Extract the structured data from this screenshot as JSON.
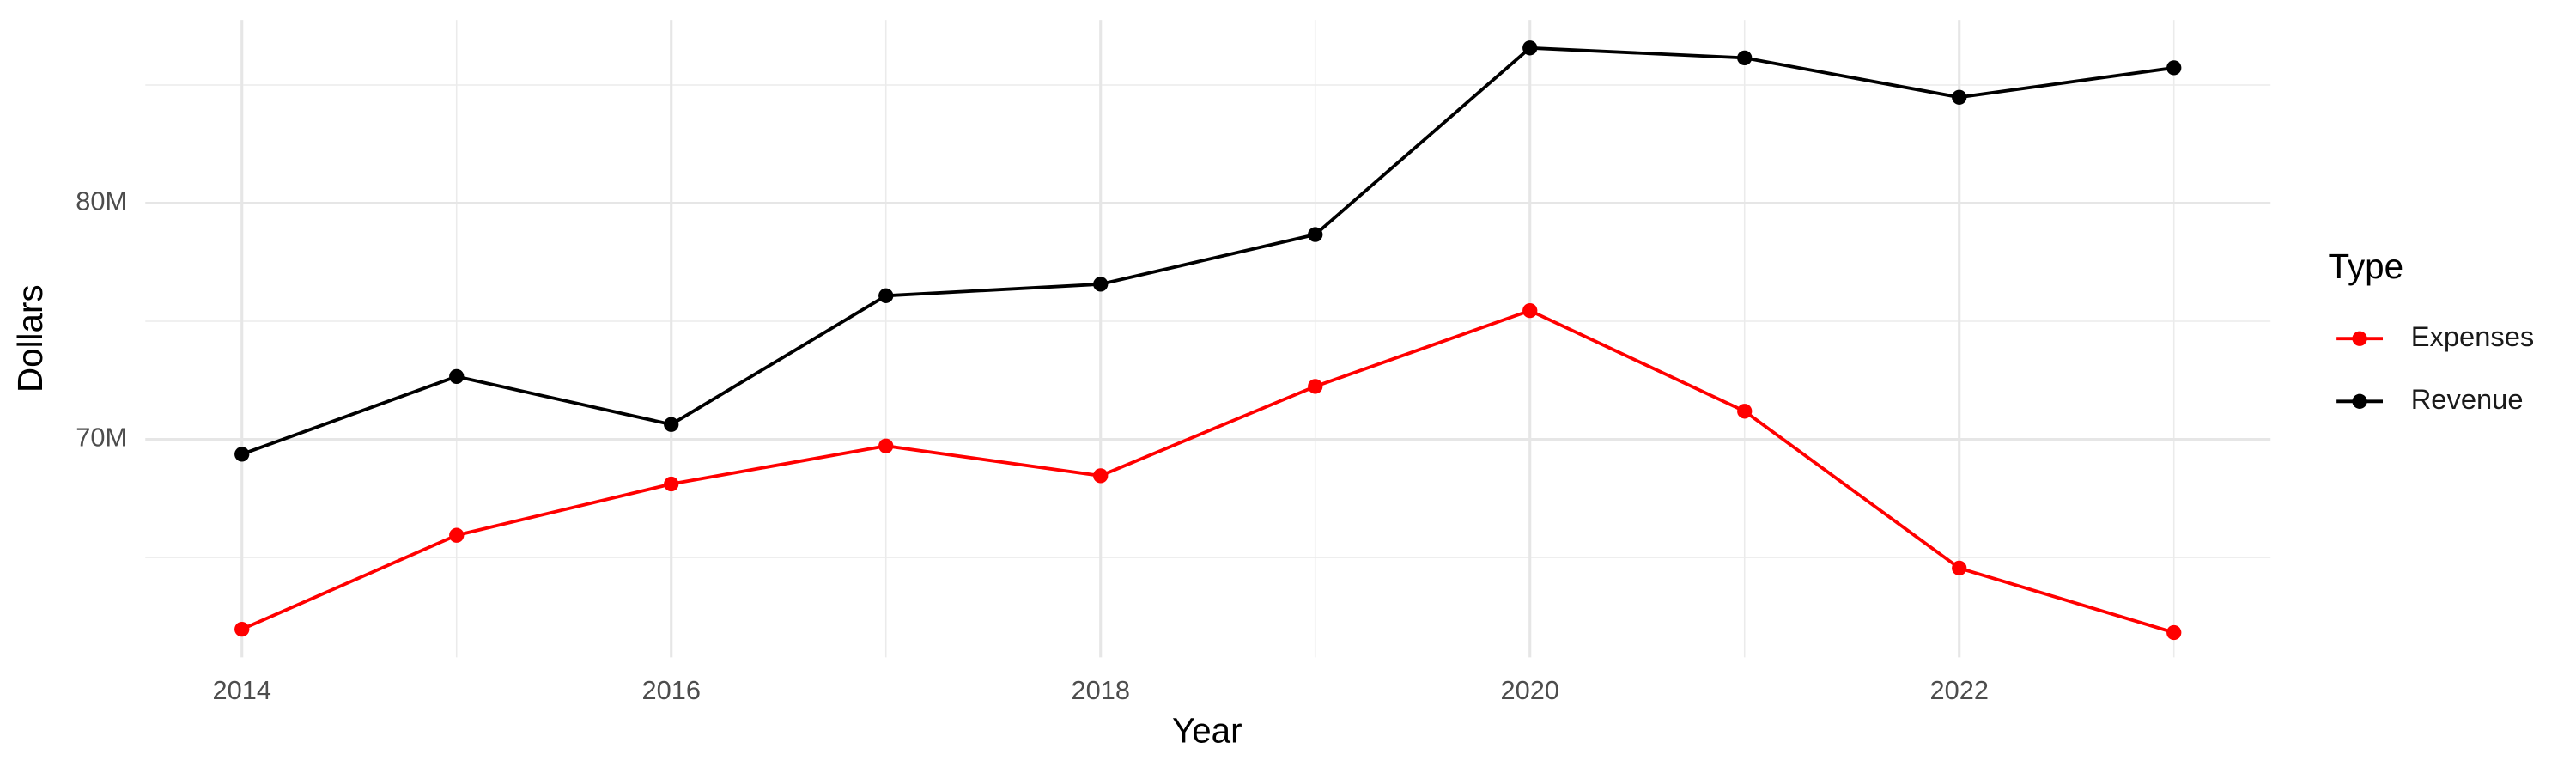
{
  "chart_data": {
    "type": "line",
    "x_label": "Year",
    "y_label": "Dollars",
    "legend_title": "Type",
    "x": [
      2014,
      2015,
      2016,
      2017,
      2018,
      2019,
      2020,
      2021,
      2022,
      2023
    ],
    "series": [
      {
        "name": "Expenses",
        "color": "#ff0000",
        "values": [
          61960000,
          65940000,
          68110000,
          69720000,
          68460000,
          72240000,
          75450000,
          71190000,
          64550000,
          61820000
        ]
      },
      {
        "name": "Revenue",
        "color": "#000000",
        "values": [
          69370000,
          72660000,
          70630000,
          76080000,
          76570000,
          78670000,
          86570000,
          86150000,
          84480000,
          85730000
        ]
      }
    ],
    "xlim": [
      2013.55,
      2023.45
    ],
    "xticks": [
      2014,
      2016,
      2018,
      2020,
      2022
    ],
    "x_minor_ticks": [
      2015,
      2017,
      2019,
      2021,
      2023
    ],
    "ylim": [
      60770000,
      87760000
    ],
    "yticks": [
      {
        "value": 70000000,
        "label": "70M"
      },
      {
        "value": 80000000,
        "label": "80M"
      }
    ],
    "y_minor_ticks": [
      65000000,
      75000000,
      85000000
    ],
    "grid": true,
    "legend": "right"
  }
}
